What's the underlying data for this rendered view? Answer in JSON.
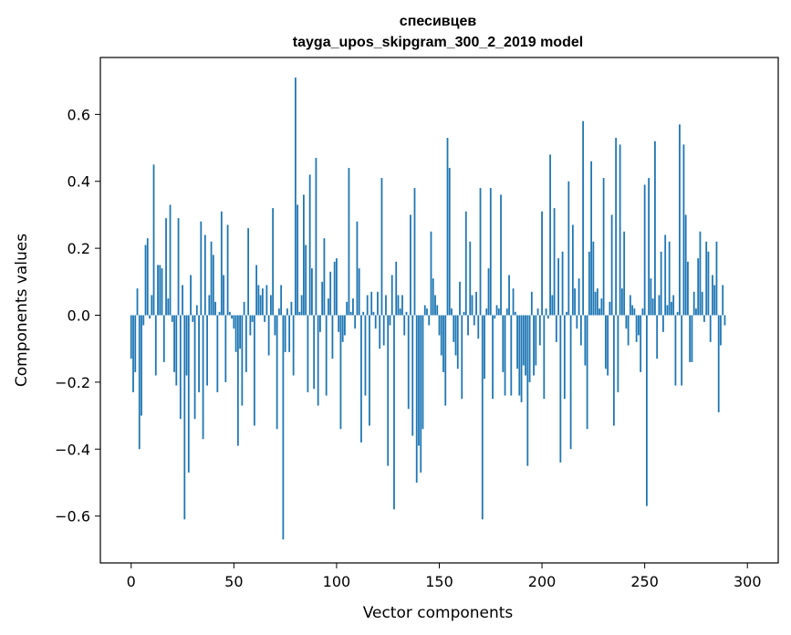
{
  "chart_data": {
    "type": "bar",
    "title_line1": "спесивцев",
    "title_line2": "tayga_upos_skipgram_300_2_2019 model",
    "xlabel": "Vector components",
    "ylabel": "Components values",
    "xlim": [
      -15,
      315
    ],
    "ylim": [
      -0.74,
      0.77
    ],
    "xticks": [
      0,
      50,
      100,
      150,
      200,
      250,
      300
    ],
    "xtick_labels": [
      "0",
      "50",
      "100",
      "150",
      "200",
      "250",
      "300"
    ],
    "yticks": [
      -0.6,
      -0.4,
      -0.2,
      0.0,
      0.2,
      0.4,
      0.6
    ],
    "ytick_labels": [
      "−0.6",
      "−0.4",
      "−0.2",
      "0.0",
      "0.2",
      "0.4",
      "0.6"
    ],
    "bar_color": "#1f77b4",
    "values": [
      -0.13,
      -0.23,
      -0.17,
      0.08,
      -0.4,
      -0.3,
      -0.03,
      0.21,
      0.23,
      -0.01,
      0.06,
      0.45,
      -0.18,
      0.15,
      0.15,
      0.14,
      -0.14,
      0.29,
      0.05,
      0.33,
      -0.02,
      -0.17,
      -0.21,
      0.29,
      -0.31,
      0.09,
      -0.61,
      -0.18,
      -0.47,
      0.12,
      -0.02,
      -0.31,
      0.03,
      -0.23,
      0.28,
      -0.37,
      0.24,
      -0.21,
      0.06,
      0.22,
      0.18,
      0.04,
      -0.23,
      0.01,
      0.31,
      0.12,
      -0.2,
      0.27,
      0.01,
      -0.01,
      -0.04,
      -0.11,
      -0.39,
      -0.1,
      -0.27,
      0.04,
      -0.17,
      0.26,
      -0.06,
      -0.02,
      -0.33,
      0.15,
      0.09,
      0.06,
      0.08,
      -0.02,
      0.09,
      -0.12,
      0.06,
      0.32,
      -0.06,
      -0.34,
      0.02,
      0.09,
      -0.67,
      -0.11,
      0.02,
      -0.11,
      0.04,
      -0.18,
      0.71,
      0.33,
      0.01,
      0.06,
      0.36,
      0.21,
      -0.23,
      0.42,
      0.14,
      -0.22,
      0.47,
      -0.27,
      -0.05,
      0.1,
      0.23,
      -0.24,
      0.05,
      0.13,
      -0.13,
      0.16,
      0.17,
      -0.05,
      -0.34,
      -0.08,
      -0.06,
      0.04,
      0.44,
      0.01,
      0.05,
      -0.04,
      0.28,
      0.14,
      -0.38,
      0.01,
      -0.24,
      0.06,
      -0.33,
      0.07,
      0.01,
      -0.04,
      0.07,
      -0.1,
      0.41,
      -0.09,
      0.06,
      -0.45,
      -0.03,
      0.12,
      -0.58,
      0.16,
      0.06,
      0.02,
      0.06,
      -0.06,
      0.01,
      -0.28,
      0.3,
      -0.36,
      0.38,
      -0.5,
      -0.39,
      -0.47,
      -0.34,
      0.03,
      0.02,
      -0.03,
      0.25,
      0.11,
      0.06,
      0.03,
      -0.06,
      -0.12,
      -0.17,
      -0.27,
      0.53,
      0.44,
      0.02,
      -0.08,
      -0.12,
      -0.16,
      0.1,
      -0.25,
      0.01,
      0.31,
      -0.06,
      0.22,
      0.06,
      -0.03,
      0.07,
      -0.07,
      0.38,
      -0.61,
      -0.19,
      0.02,
      0.14,
      0.38,
      -0.25,
      -0.01,
      0.03,
      0.02,
      0.36,
      -0.17,
      -0.24,
      0.02,
      0.12,
      -0.24,
      0.08,
      0.01,
      -0.16,
      -0.24,
      -0.26,
      -0.15,
      -0.18,
      -0.45,
      -0.2,
      0.07,
      -0.18,
      -0.15,
      0.02,
      -0.09,
      0.31,
      -0.25,
      0.02,
      -0.01,
      0.48,
      0.06,
      0.32,
      -0.08,
      0.17,
      -0.44,
      0.19,
      -0.25,
      0.01,
      0.4,
      -0.4,
      0.27,
      0.08,
      -0.04,
      0.11,
      -0.09,
      0.58,
      -0.15,
      -0.34,
      0.19,
      0.46,
      0.22,
      0.07,
      0.08,
      0.02,
      0.05,
      0.41,
      -0.16,
      -0.18,
      0.04,
      0.3,
      -0.33,
      0.53,
      -0.23,
      0.51,
      0.08,
      0.25,
      -0.04,
      -0.09,
      0.06,
      0.03,
      0.02,
      -0.08,
      -0.06,
      -0.17,
      0.02,
      0.39,
      -0.57,
      0.41,
      0.11,
      0.05,
      0.52,
      -0.13,
      0.06,
      0.19,
      -0.05,
      0.24,
      0.03,
      0.22,
      0.04,
      0.06,
      -0.21,
      0.01,
      0.57,
      -0.21,
      0.51,
      0.3,
      0.16,
      -0.14,
      -0.14,
      0.07,
      0.02,
      0.17,
      0.25,
      0.07,
      -0.02,
      0.22,
      0.19,
      -0.08,
      0.12,
      0.09,
      0.22,
      -0.29,
      -0.09,
      0.09,
      -0.03
    ]
  }
}
